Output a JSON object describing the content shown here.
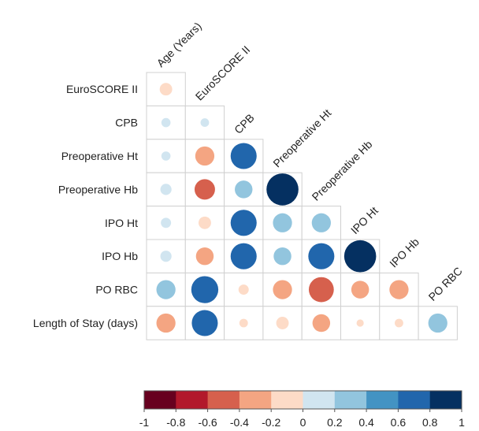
{
  "chart_data": {
    "type": "heatmap",
    "subtype": "correlogram-lower-triangle-circles",
    "variables": [
      "Age (Years)",
      "EuroSCORE II",
      "CPB",
      "Preoperative Ht",
      "Preoperative Hb",
      "IPO Ht",
      "IPO Hb",
      "PO RBC"
    ],
    "rows": [
      "EuroSCORE II",
      "CPB",
      "Preoperative Ht",
      "Preoperative Hb",
      "IPO Ht",
      "IPO Hb",
      "PO RBC",
      "Length of Stay (days)"
    ],
    "matrix": [
      [
        -0.15
      ],
      [
        0.08,
        0.07
      ],
      [
        0.08,
        -0.35,
        0.65
      ],
      [
        0.12,
        -0.4,
        0.3,
        0.98
      ],
      [
        0.1,
        -0.15,
        0.65,
        0.35,
        0.35
      ],
      [
        0.12,
        -0.3,
        0.65,
        0.3,
        0.65,
        0.98
      ],
      [
        0.35,
        0.7,
        -0.1,
        -0.35,
        -0.6,
        -0.3,
        -0.35
      ],
      [
        -0.35,
        0.65,
        -0.07,
        -0.15,
        -0.3,
        -0.05,
        -0.07,
        0.35
      ]
    ],
    "colorbar": {
      "range": [
        -1,
        1
      ],
      "ticks": [
        "-1",
        "-0.8",
        "-0.6",
        "-0.4",
        "-0.2",
        "0",
        "0.2",
        "0.4",
        "0.6",
        "0.8",
        "1"
      ],
      "colors": [
        "#67001f",
        "#b2182b",
        "#d6604d",
        "#f4a582",
        "#fddbc7",
        "#d1e5f0",
        "#92c5de",
        "#4393c3",
        "#2166ac",
        "#053061"
      ]
    }
  }
}
